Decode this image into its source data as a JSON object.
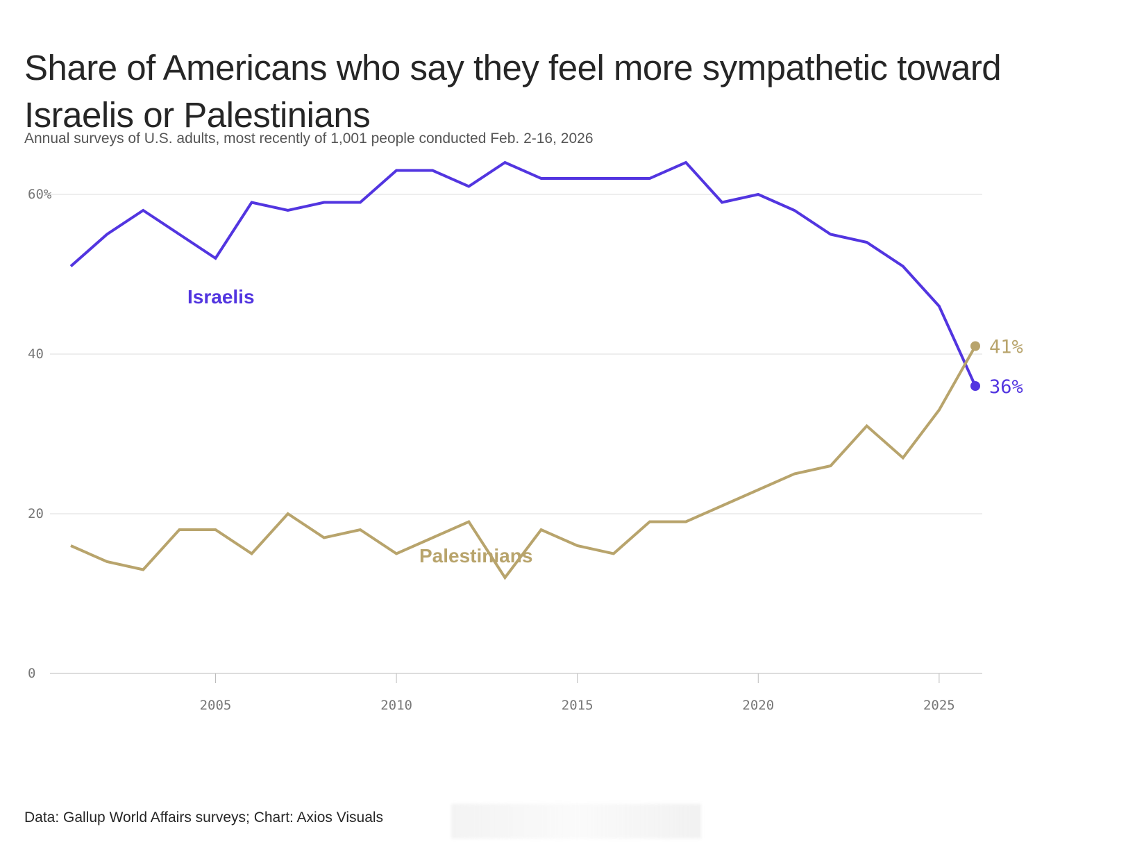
{
  "header": {
    "title": "Share of Americans who say they feel more sympathetic toward Israelis or Palestinians",
    "subtitle": "Annual surveys of U.S. adults, most recently of 1,001 people conducted Feb. 2-16, 2026"
  },
  "footer": {
    "source": "Data: Gallup World Affairs surveys; Chart: Axios Visuals"
  },
  "colors": {
    "israelis": "#5235e0",
    "palestinians": "#b8a46c",
    "grid": "#dcdcdc",
    "axis": "#bbbbbb"
  },
  "chart_data": {
    "type": "line",
    "title": "Share of Americans who say they feel more sympathetic toward Israelis or Palestinians",
    "subtitle": "Annual surveys of U.S. adults, most recently of 1,001 people conducted Feb. 2-16, 2026",
    "xlabel": "",
    "ylabel": "",
    "x": [
      2001,
      2002,
      2003,
      2004,
      2005,
      2006,
      2007,
      2008,
      2009,
      2010,
      2011,
      2012,
      2013,
      2014,
      2015,
      2016,
      2017,
      2018,
      2019,
      2020,
      2021,
      2022,
      2023,
      2024,
      2025,
      2026
    ],
    "series": [
      {
        "name": "Israelis",
        "label": "Israelis",
        "color": "#5235e0",
        "end_label": "36%",
        "values": [
          51,
          55,
          58,
          55,
          52,
          59,
          58,
          59,
          59,
          63,
          63,
          61,
          64,
          62,
          62,
          62,
          62,
          64,
          59,
          60,
          58,
          55,
          54,
          51,
          46,
          36
        ]
      },
      {
        "name": "Palestinians",
        "label": "Palestinians",
        "color": "#b8a46c",
        "end_label": "41%",
        "values": [
          16,
          14,
          13,
          18,
          18,
          15,
          20,
          17,
          18,
          15,
          17,
          19,
          12,
          18,
          16,
          15,
          19,
          19,
          21,
          23,
          25,
          26,
          31,
          27,
          33,
          41
        ]
      }
    ],
    "xlim": [
      2001,
      2026.2
    ],
    "ylim": [
      0,
      64
    ],
    "y_ticks": [
      0,
      20,
      40,
      60
    ],
    "y_tick_labels": [
      "0",
      "20",
      "40",
      "60%"
    ],
    "x_ticks": [
      2005,
      2010,
      2015,
      2020,
      2025
    ],
    "x_tick_labels": [
      "2005",
      "2010",
      "2015",
      "2020",
      "2025"
    ],
    "grid": true,
    "legend": "inline labels"
  }
}
